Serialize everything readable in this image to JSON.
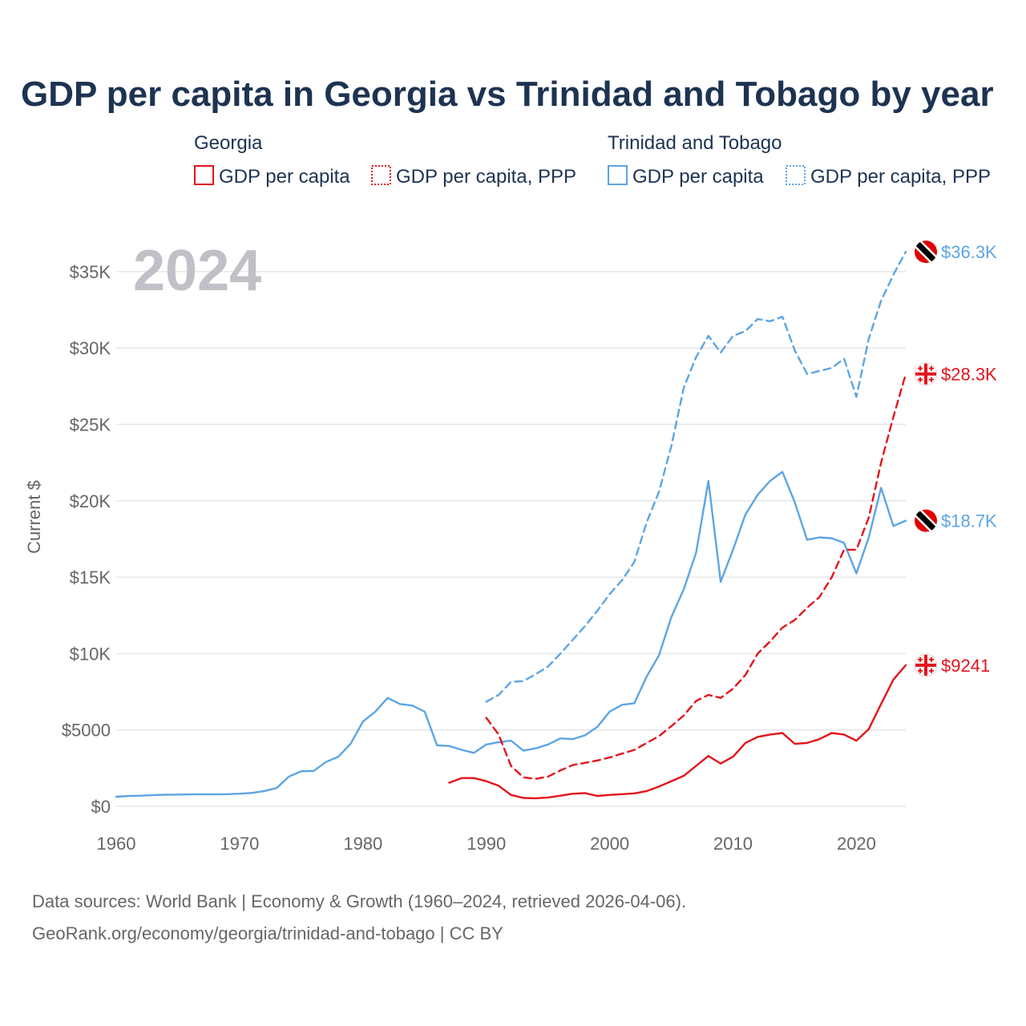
{
  "title": "GDP per capita in Georgia vs Trinidad and Tobago by year",
  "year_overlay": "2024",
  "legend": {
    "groups": [
      {
        "name": "Georgia",
        "color": "#e3141b",
        "items": [
          {
            "label": "GDP per capita",
            "style": "solid"
          },
          {
            "label": "GDP per capita, PPP",
            "style": "dotted"
          }
        ]
      },
      {
        "name": "Trinidad and Tobago",
        "color": "#5da5e3",
        "items": [
          {
            "label": "GDP per capita",
            "style": "solid"
          },
          {
            "label": "GDP per capita, PPP",
            "style": "dotted"
          }
        ]
      }
    ]
  },
  "y_axis_label": "Current $",
  "end_labels": [
    {
      "text": "$36.3K",
      "series": "tt_ppp",
      "color": "#5da5e3",
      "icon": "trinidad-flag-icon"
    },
    {
      "text": "$28.3K",
      "series": "ge_ppp",
      "color": "#e3141b",
      "icon": "georgia-flag-icon"
    },
    {
      "text": "$18.7K",
      "series": "tt_gdp",
      "color": "#5da5e3",
      "icon": "trinidad-flag-icon"
    },
    {
      "text": "$9241",
      "series": "ge_gdp",
      "color": "#e3141b",
      "icon": "georgia-flag-icon"
    }
  ],
  "source_lines": [
    "Data sources: World Bank | Economy & Growth (1960–2024, retrieved 2026-04-06).",
    "GeoRank.org/economy/georgia/trinidad-and-tobago | CC BY"
  ],
  "chart_data": {
    "type": "line",
    "title": "GDP per capita in Georgia vs Trinidad and Tobago by year",
    "xlabel": "",
    "ylabel": "Current $",
    "xlim": [
      1960,
      2024
    ],
    "ylim": [
      0,
      37000
    ],
    "x_ticks": [
      1960,
      1970,
      1980,
      1990,
      2000,
      2010,
      2020
    ],
    "y_ticks": [
      {
        "value": 0,
        "label": "$0"
      },
      {
        "value": 5000,
        "label": "$5000"
      },
      {
        "value": 10000,
        "label": "$10K"
      },
      {
        "value": 15000,
        "label": "$15K"
      },
      {
        "value": 20000,
        "label": "$20K"
      },
      {
        "value": 25000,
        "label": "$25K"
      },
      {
        "value": 30000,
        "label": "$30K"
      },
      {
        "value": 35000,
        "label": "$35K"
      }
    ],
    "series": [
      {
        "id": "tt_gdp",
        "name": "Trinidad and Tobago – GDP per capita",
        "color": "#5da5e3",
        "dash": "solid",
        "x": [
          1960,
          1961,
          1962,
          1963,
          1964,
          1965,
          1966,
          1967,
          1968,
          1969,
          1970,
          1971,
          1972,
          1973,
          1974,
          1975,
          1976,
          1977,
          1978,
          1979,
          1980,
          1981,
          1982,
          1983,
          1984,
          1985,
          1986,
          1987,
          1988,
          1989,
          1990,
          1991,
          1992,
          1993,
          1994,
          1995,
          1996,
          1997,
          1998,
          1999,
          2000,
          2001,
          2002,
          2003,
          2004,
          2005,
          2006,
          2007,
          2008,
          2009,
          2010,
          2011,
          2012,
          2013,
          2014,
          2015,
          2016,
          2017,
          2018,
          2019,
          2020,
          2021,
          2022,
          2023,
          2024
        ],
        "values": [
          630,
          680,
          700,
          740,
          760,
          770,
          780,
          790,
          790,
          800,
          830,
          880,
          1000,
          1200,
          1950,
          2300,
          2320,
          2900,
          3250,
          4100,
          5550,
          6200,
          7100,
          6700,
          6600,
          6200,
          4000,
          3950,
          3700,
          3500,
          4050,
          4200,
          4300,
          3650,
          3800,
          4050,
          4450,
          4400,
          4650,
          5200,
          6200,
          6650,
          6750,
          8500,
          9900,
          12400,
          14200,
          16600,
          21300,
          14700,
          16800,
          19100,
          20400,
          21300,
          21900,
          19900,
          17450,
          17600,
          17550,
          17250,
          15250,
          17600,
          20850,
          18350,
          18700
        ]
      },
      {
        "id": "tt_ppp",
        "name": "Trinidad and Tobago – GDP per capita, PPP",
        "color": "#5da5e3",
        "dash": "dashed",
        "x": [
          1990,
          1991,
          1992,
          1993,
          1994,
          1995,
          1996,
          1997,
          1998,
          1999,
          2000,
          2001,
          2002,
          2003,
          2004,
          2005,
          2006,
          2007,
          2008,
          2009,
          2010,
          2011,
          2012,
          2013,
          2014,
          2015,
          2016,
          2017,
          2018,
          2019,
          2020,
          2021,
          2022,
          2023,
          2024
        ],
        "values": [
          6850,
          7300,
          8150,
          8200,
          8650,
          9150,
          10000,
          10900,
          11800,
          12800,
          13900,
          14800,
          16000,
          18600,
          20600,
          23600,
          27400,
          29400,
          30800,
          29700,
          30800,
          31100,
          31900,
          31750,
          32050,
          29850,
          28300,
          28500,
          28700,
          29300,
          26800,
          30600,
          33100,
          34800,
          36300
        ]
      },
      {
        "id": "ge_ppp",
        "name": "Georgia – GDP per capita, PPP",
        "color": "#e3141b",
        "dash": "dashed",
        "x": [
          1990,
          1991,
          1992,
          1993,
          1994,
          1995,
          1996,
          1997,
          1998,
          1999,
          2000,
          2001,
          2002,
          2003,
          2004,
          2005,
          2006,
          2007,
          2008,
          2009,
          2010,
          2011,
          2012,
          2013,
          2014,
          2015,
          2016,
          2017,
          2018,
          2019,
          2020,
          2021,
          2022,
          2023,
          2024
        ],
        "values": [
          5800,
          4700,
          2650,
          1900,
          1800,
          1950,
          2350,
          2700,
          2850,
          3000,
          3200,
          3450,
          3700,
          4150,
          4600,
          5250,
          5950,
          6900,
          7300,
          7100,
          7700,
          8600,
          10000,
          10800,
          11700,
          12200,
          13000,
          13700,
          15000,
          16800,
          16800,
          18900,
          22500,
          25500,
          28300
        ]
      },
      {
        "id": "ge_gdp",
        "name": "Georgia – GDP per capita",
        "color": "#e3141b",
        "dash": "solid",
        "x": [
          1987,
          1988,
          1989,
          1990,
          1991,
          1992,
          1993,
          1994,
          1995,
          1996,
          1997,
          1998,
          1999,
          2000,
          2001,
          2002,
          2003,
          2004,
          2005,
          2006,
          2007,
          2008,
          2009,
          2010,
          2011,
          2012,
          2013,
          2014,
          2015,
          2016,
          2017,
          2018,
          2019,
          2020,
          2021,
          2022,
          2023,
          2024
        ],
        "values": [
          1550,
          1850,
          1850,
          1650,
          1350,
          750,
          550,
          530,
          580,
          700,
          830,
          870,
          680,
          750,
          800,
          850,
          1000,
          1300,
          1650,
          2000,
          2650,
          3300,
          2800,
          3250,
          4150,
          4550,
          4700,
          4800,
          4100,
          4150,
          4400,
          4800,
          4700,
          4300,
          5050,
          6700,
          8300,
          9241
        ]
      }
    ]
  }
}
